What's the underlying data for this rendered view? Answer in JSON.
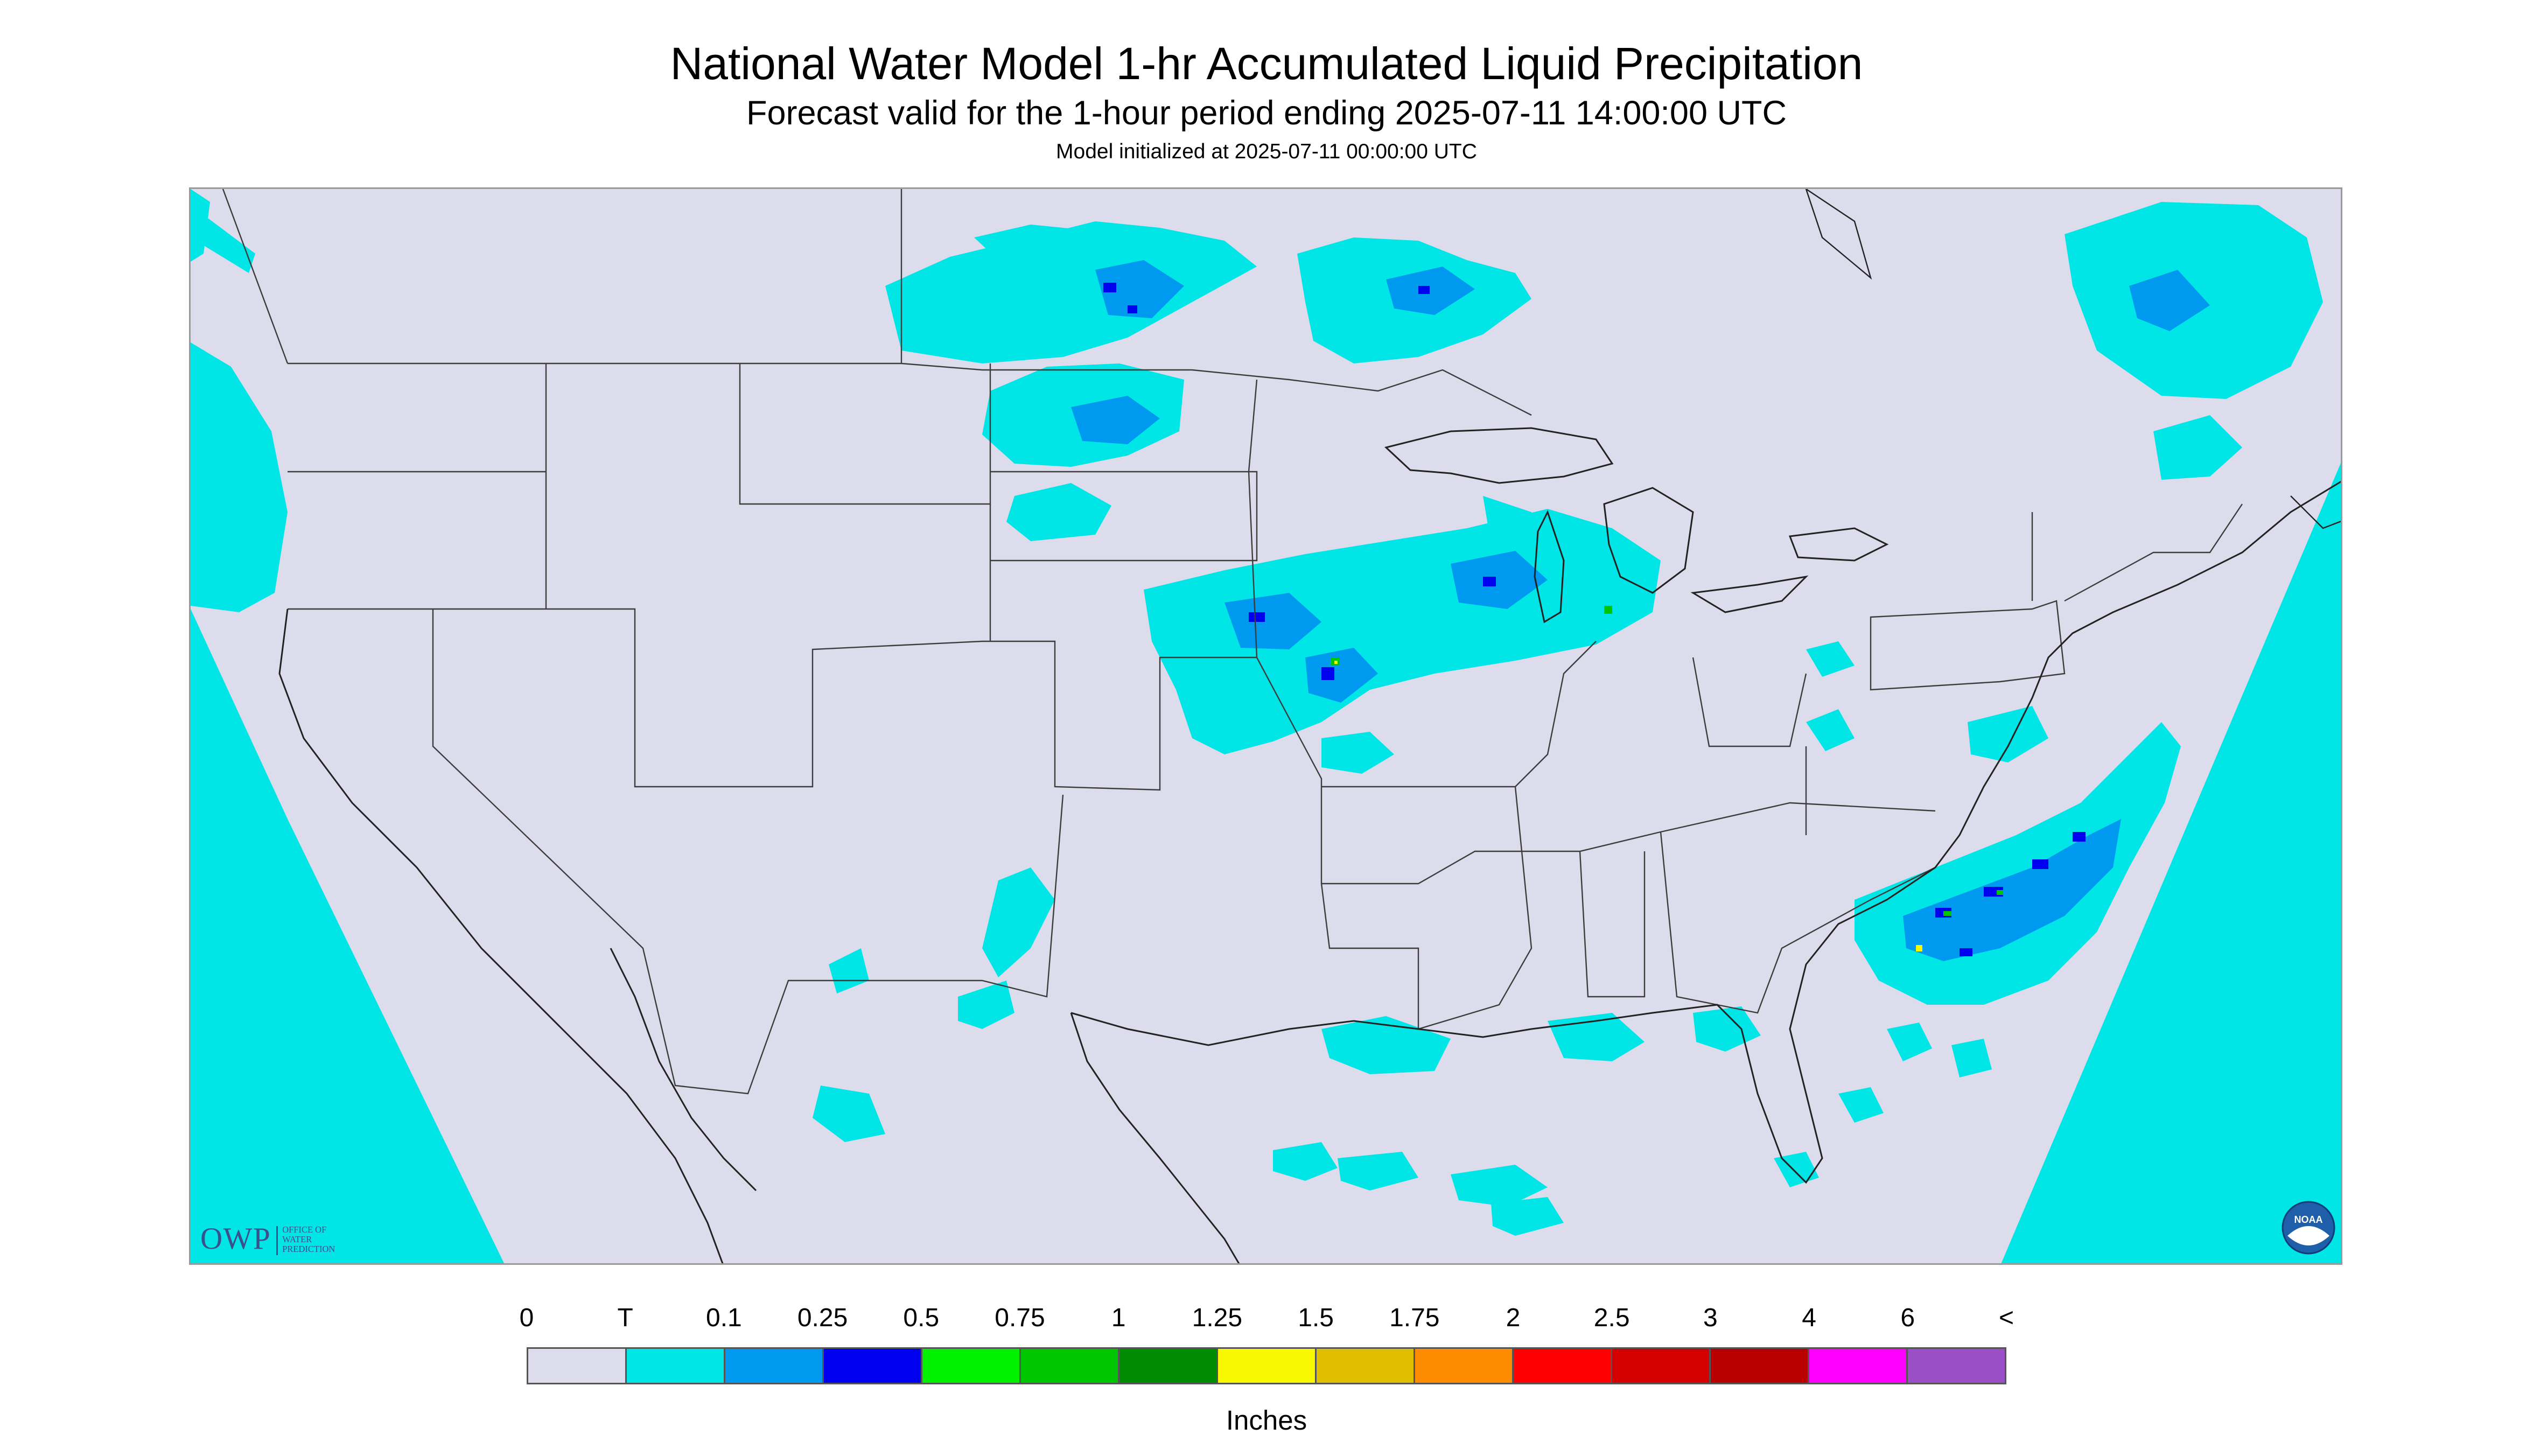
{
  "title": "National Water Model 1-hr Accumulated Liquid Precipitation",
  "subtitle": "Forecast valid for the 1-hour period ending 2025-07-11 14:00:00 UTC",
  "init_line": "Model initialized at 2025-07-11 00:00:00 UTC",
  "logos": {
    "owp_mark": "OWP",
    "owp_text": [
      "OFFICE OF",
      "WATER",
      "PREDICTION"
    ],
    "noaa_text": "NOAA"
  },
  "legend": {
    "units": "Inches",
    "ticks": [
      "0",
      "T",
      "0.1",
      "0.25",
      "0.5",
      "0.75",
      "1",
      "1.25",
      "1.5",
      "1.75",
      "2",
      "2.5",
      "3",
      "4",
      "6",
      "<"
    ],
    "colors": [
      "#dcdcec",
      "#00e5e5",
      "#0099f0",
      "#0000f0",
      "#00f000",
      "#00c600",
      "#008c00",
      "#f8f800",
      "#e0be00",
      "#ff8c00",
      "#ff0000",
      "#d40000",
      "#b80000",
      "#ff00ff",
      "#9a4fc7"
    ]
  },
  "colors": {
    "background": "#dcdcec",
    "trace": "#00e5e5",
    "light": "#0099f0",
    "moderate": "#0000f0",
    "heavy": "#00c600",
    "heavier": "#f8f800",
    "outside_domain": "#00e5e5"
  }
}
